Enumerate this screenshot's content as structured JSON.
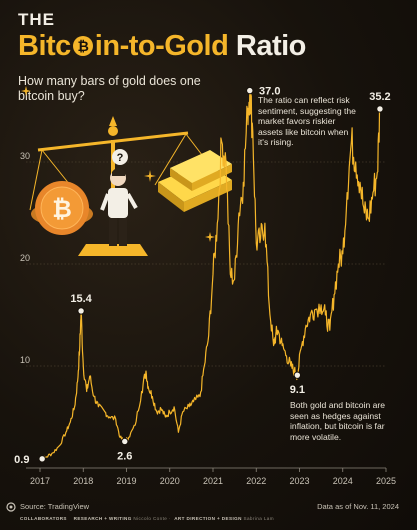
{
  "header": {
    "eyebrow": "THE",
    "title_part1": "Bitc",
    "title_part2": "in-to-Gold",
    "title_part3": "Ratio",
    "subtitle": "How many bars of gold does one bitcoin buy?"
  },
  "notes": {
    "peak": "The ratio can reflect risk sentiment, suggesting the market favors riskier assets like bitcoin when it's rising.",
    "trough": "Both gold and bitcoin are seen as hedges against inflation, but bitcoin is far more volatile."
  },
  "footer": {
    "source": "Source: TradingView",
    "data_as_of": "Data as of Nov. 11, 2024",
    "collaborators_label": "COLLABORATORS",
    "researcher": "RESEARCH + WRITING",
    "researcher_name": "Niccolo Conte",
    "art": "ART DIRECTION + DESIGN",
    "art_name": "Sabrina Lam"
  },
  "colors": {
    "line": "#f5b62a",
    "accent": "#f5b62a",
    "grid": "#5a4e3a",
    "text": "#f3efe6"
  },
  "icons": [
    "bitcoin-logo-icon",
    "balance-scale-icon",
    "gold-bar-icon",
    "question-mark-icon",
    "source-logo-icon"
  ],
  "chart_data": {
    "type": "line",
    "title": "Bitcoin-to-Gold Ratio",
    "ylim": [
      0,
      40
    ],
    "yticks": [
      10,
      20,
      30
    ],
    "xticks": [
      "2017",
      "2018",
      "2019",
      "2020",
      "2021",
      "2022",
      "2023",
      "2024",
      "2025"
    ],
    "xlim": [
      2017.0,
      2025.0
    ],
    "grid": true,
    "annotations": [
      {
        "label": "0.9",
        "x": 2017.05,
        "y": 0.9
      },
      {
        "label": "15.4",
        "x": 2017.95,
        "y": 15.4
      },
      {
        "label": "2.6",
        "x": 2018.96,
        "y": 2.6
      },
      {
        "label": "37.0",
        "x": 2021.85,
        "y": 37.0
      },
      {
        "label": "9.1",
        "x": 2022.95,
        "y": 9.1
      },
      {
        "label": "35.2",
        "x": 2024.86,
        "y": 35.2
      }
    ],
    "series": [
      {
        "x": [
          2017.0,
          2017.05,
          2017.15,
          2017.3,
          2017.45,
          2017.6,
          2017.7,
          2017.8,
          2017.87,
          2017.92,
          2017.95,
          2018.0,
          2018.08,
          2018.15,
          2018.25,
          2018.35,
          2018.5,
          2018.6,
          2018.75,
          2018.85,
          2018.96,
          2019.05,
          2019.2,
          2019.35,
          2019.45,
          2019.5,
          2019.6,
          2019.7,
          2019.8,
          2019.9,
          2020.0,
          2020.1,
          2020.2,
          2020.3,
          2020.45,
          2020.55,
          2020.7,
          2020.8,
          2020.9,
          2021.0,
          2021.1,
          2021.2,
          2021.3,
          2021.4,
          2021.5,
          2021.6,
          2021.7,
          2021.8,
          2021.85,
          2021.92,
          2022.0,
          2022.1,
          2022.2,
          2022.3,
          2022.4,
          2022.45,
          2022.5,
          2022.6,
          2022.7,
          2022.8,
          2022.88,
          2022.95,
          2023.05,
          2023.15,
          2023.25,
          2023.35,
          2023.5,
          2023.6,
          2023.7,
          2023.8,
          2023.9,
          2024.0,
          2024.1,
          2024.2,
          2024.3,
          2024.4,
          2024.5,
          2024.6,
          2024.7,
          2024.8,
          2024.86
        ],
        "values": [
          0.9,
          0.9,
          1.1,
          1.5,
          2.2,
          3.5,
          4.5,
          6.0,
          8.5,
          12.0,
          15.4,
          10.0,
          7.5,
          9.0,
          7.0,
          6.0,
          5.5,
          5.0,
          4.8,
          3.0,
          2.6,
          3.0,
          4.2,
          7.5,
          9.5,
          8.0,
          7.0,
          5.5,
          5.8,
          5.0,
          5.5,
          6.0,
          3.5,
          5.5,
          6.0,
          6.5,
          7.0,
          10.0,
          13.0,
          19.0,
          24.0,
          32.0,
          30.0,
          19.0,
          18.5,
          25.0,
          28.0,
          35.0,
          37.0,
          33.0,
          22.0,
          22.5,
          24.0,
          16.0,
          12.0,
          13.0,
          13.5,
          12.0,
          11.0,
          10.0,
          9.5,
          9.1,
          12.0,
          14.0,
          15.0,
          15.5,
          16.0,
          15.0,
          13.5,
          17.0,
          20.0,
          21.0,
          27.0,
          32.0,
          30.0,
          28.0,
          25.0,
          24.5,
          27.0,
          29.0,
          35.2
        ]
      }
    ]
  }
}
